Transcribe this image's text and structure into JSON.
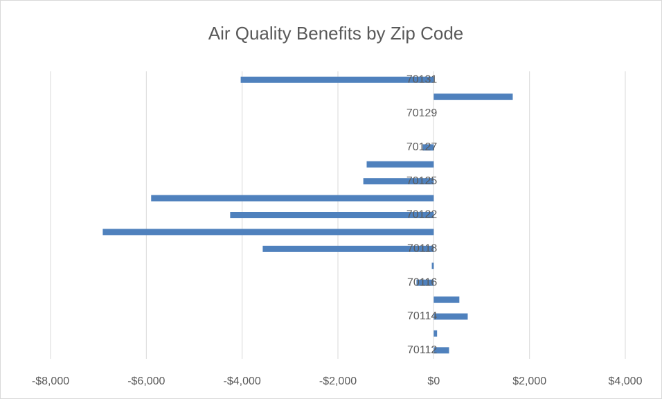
{
  "chart_data": {
    "type": "barh",
    "title": "Air Quality Benefits by Zip Code",
    "categories": [
      "70112",
      null,
      "70114",
      null,
      "70116",
      null,
      "70118",
      null,
      "70122",
      null,
      "70125",
      null,
      "70127",
      null,
      "70129",
      null,
      "70131"
    ],
    "values": [
      320,
      70,
      710,
      535,
      -360,
      -40,
      -3570,
      -6910,
      -4250,
      -5900,
      -1470,
      -1400,
      -230,
      0,
      0,
      1650,
      -4030
    ],
    "color": "#4f81bd",
    "xlim": [
      -8000,
      4000
    ],
    "xticks": [
      {
        "value": -8000,
        "label": "-$8,000"
      },
      {
        "value": -6000,
        "label": "-$6,000"
      },
      {
        "value": -4000,
        "label": "-$4,000"
      },
      {
        "value": -2000,
        "label": "-$2,000"
      },
      {
        "value": 0,
        "label": "$0"
      },
      {
        "value": 2000,
        "label": "$2,000"
      },
      {
        "value": 4000,
        "label": "$4,000"
      }
    ],
    "grid": true
  }
}
